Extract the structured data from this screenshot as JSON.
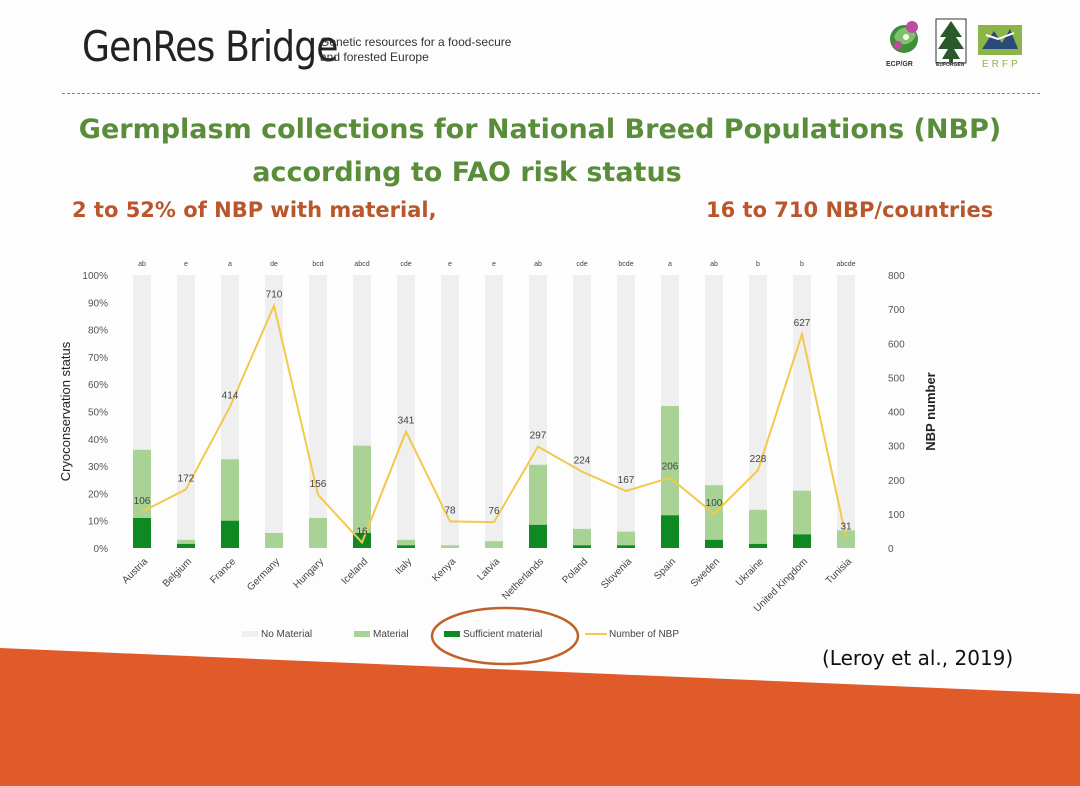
{
  "header": {
    "brand": "GenRes Bridge",
    "tagline_line1": "Genetic resources for a food-secure",
    "tagline_line2": "and forested Europe",
    "logos": [
      "ECPGR",
      "EUFORGEN",
      "ERFP"
    ],
    "logo_captions": [
      "ECP/GR",
      "EUFORGEN",
      "ERFP"
    ]
  },
  "slide": {
    "title_line1": "Germplasm collections for National Breed Populations (NBP)",
    "title_line2": "according to FAO risk status",
    "subtitle_left": "2 to 52% of NBP with material,",
    "subtitle_right": "16 to 710 NBP/countries",
    "citation": "(Leroy et al., 2019)"
  },
  "colors": {
    "title": "#5a8d3a",
    "subtitle": "#b8572b",
    "no_material": "#f0eff0",
    "material": "#a8d394",
    "sufficient": "#0f8a22",
    "nbp_line": "#f2c94c",
    "accent_orange": "#e05a2a"
  },
  "chart_data": {
    "type": "bar",
    "stacked": true,
    "categories": [
      "Austria",
      "Belgium",
      "France",
      "Germany",
      "Hungary",
      "Iceland",
      "Italy",
      "Kenya",
      "Latvia",
      "Netherlands",
      "Poland",
      "Slovenia",
      "Spain",
      "Sweden",
      "Ukraine",
      "United Kingdom",
      "Tunisia"
    ],
    "significance_letters": [
      "ab",
      "e",
      "a",
      "de",
      "bcd",
      "abcd",
      "cde",
      "e",
      "e",
      "ab",
      "cde",
      "bcde",
      "a",
      "ab",
      "b",
      "b",
      "abcde"
    ],
    "series": [
      {
        "name": "No Material",
        "values": [
          64,
          97,
          67.5,
          94.5,
          89,
          62.5,
          97,
          99,
          97.5,
          69.5,
          93,
          94,
          48,
          77,
          86,
          79,
          93.5
        ]
      },
      {
        "name": "Material",
        "values": [
          25,
          1.5,
          22.5,
          5.5,
          11,
          32,
          2,
          1,
          2.5,
          22,
          6,
          5,
          40,
          20,
          12.5,
          16,
          6.5
        ]
      },
      {
        "name": "Sufficient material",
        "values": [
          11,
          1.5,
          10,
          0,
          0,
          5.5,
          1,
          0,
          0,
          8.5,
          1,
          1,
          12,
          3,
          1.5,
          5,
          0
        ]
      },
      {
        "name": "Number of NBP",
        "type": "line",
        "axis": "right",
        "values": [
          106,
          172,
          414,
          710,
          156,
          16,
          341,
          78,
          76,
          297,
          224,
          167,
          206,
          100,
          228,
          627,
          31
        ]
      }
    ],
    "ylabel": "Cryoconservation status",
    "y2label": "NBP number",
    "ylim": [
      0,
      100
    ],
    "y2lim": [
      0,
      800
    ],
    "yticks": [
      "0%",
      "10%",
      "20%",
      "30%",
      "40%",
      "50%",
      "60%",
      "70%",
      "80%",
      "90%",
      "100%"
    ],
    "y2ticks": [
      "0",
      "100",
      "200",
      "300",
      "400",
      "500",
      "600",
      "700",
      "800"
    ],
    "legend": [
      "No Material",
      "Material",
      "Sufficient material",
      "Number of NBP"
    ],
    "legend_position": "bottom",
    "highlighted_legend_item": "Sufficient material"
  }
}
